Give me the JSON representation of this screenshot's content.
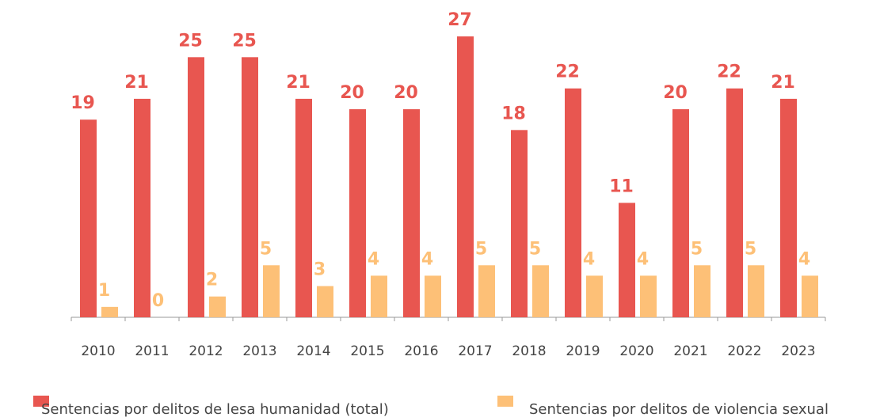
{
  "chart_data": {
    "type": "bar",
    "categories": [
      "2010",
      "2011",
      "2012",
      "2013",
      "2014",
      "2015",
      "2016",
      "2017",
      "2018",
      "2019",
      "2020",
      "2021",
      "2022",
      "2023"
    ],
    "series": [
      {
        "name": "Sentencias por delitos de lesa humanidad (total)",
        "color": "#e85650",
        "values": [
          19,
          21,
          25,
          25,
          21,
          20,
          20,
          27,
          18,
          22,
          11,
          20,
          22,
          21
        ]
      },
      {
        "name": "Sentencias por delitos de violencia sexual",
        "color": "#fdc077",
        "values": [
          1,
          0,
          2,
          5,
          3,
          4,
          4,
          5,
          5,
          4,
          4,
          5,
          5,
          4
        ]
      }
    ]
  }
}
